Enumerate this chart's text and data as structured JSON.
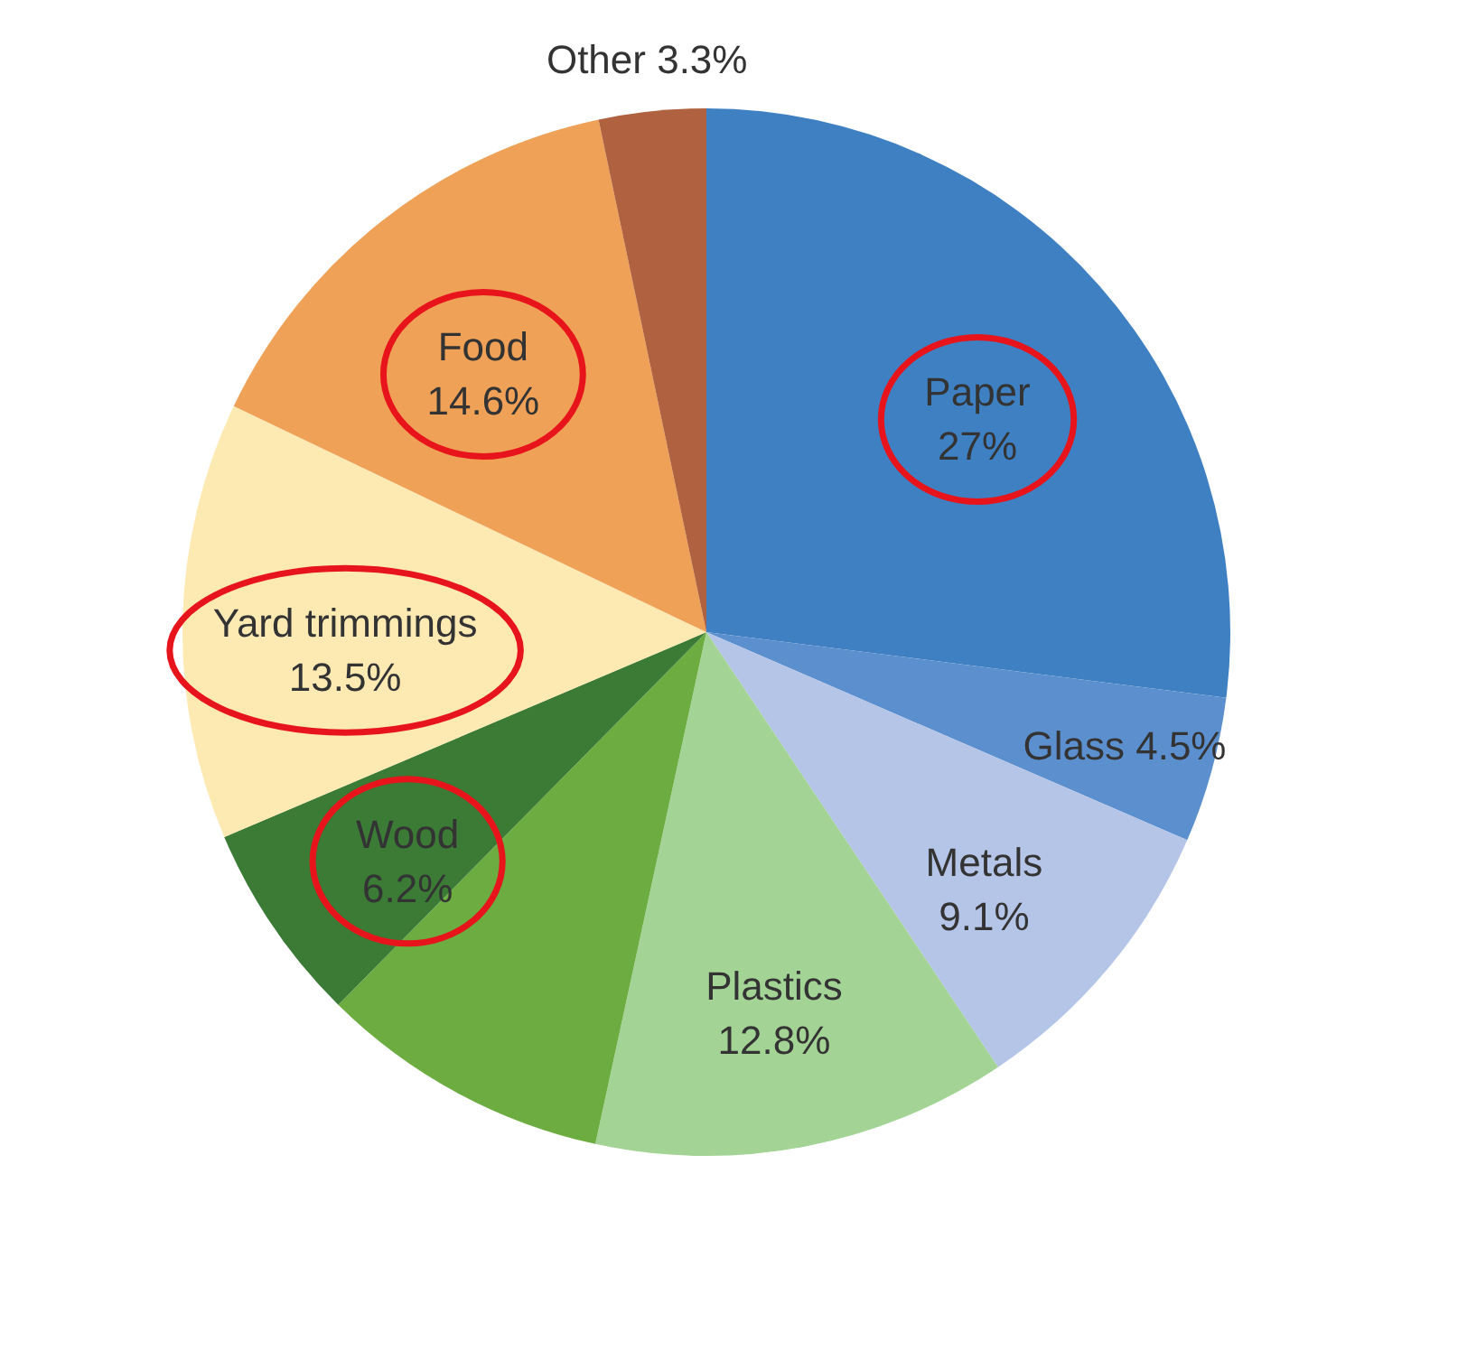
{
  "chart_data": {
    "type": "pie",
    "categories": [
      "Paper",
      "Glass",
      "Metals",
      "Plastics",
      null,
      "Wood",
      "Yard trimmings",
      "Food",
      "Other"
    ],
    "values": [
      27,
      4.5,
      9.1,
      12.8,
      9.0,
      6.2,
      13.5,
      14.6,
      3.3
    ],
    "value_labels": [
      "27%",
      "4.5%",
      "9.1%",
      "12.8%",
      null,
      "6.2%",
      "13.5%",
      "14.6%",
      "3.3%"
    ],
    "colors": [
      "#3f80c2",
      "#5b8fce",
      "#b5c5e7",
      "#a3d395",
      "#6cac40",
      "#3b7b36",
      "#fde9b2",
      "#efa157",
      "#b0613f"
    ]
  }
}
